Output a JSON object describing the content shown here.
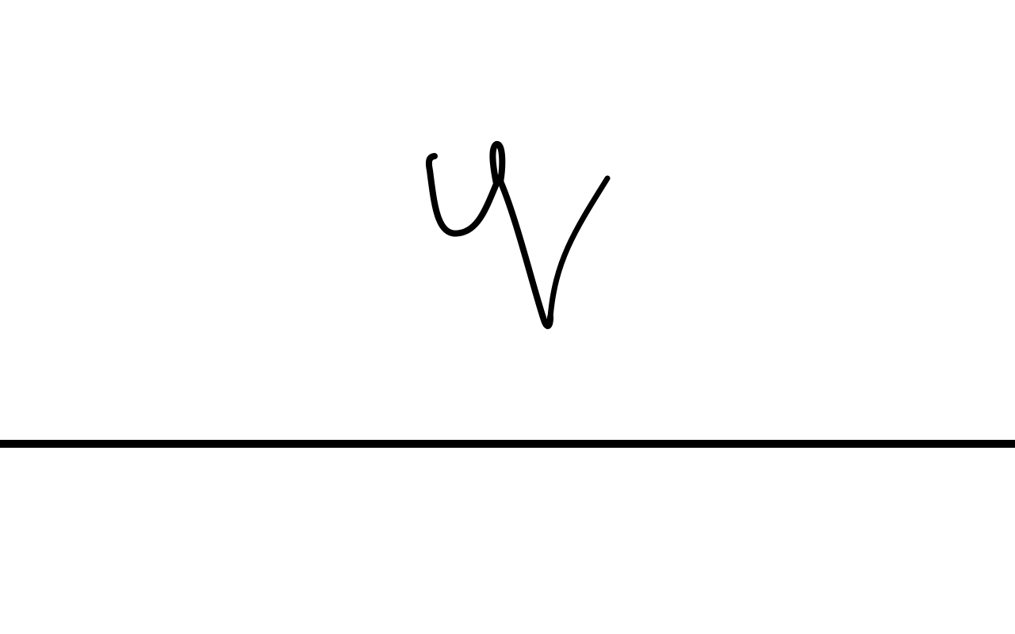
{
  "canvas": {
    "background_color": "#ffffff",
    "ink_color": "#000000"
  },
  "signature": {
    "icon": "handwritten-signature-icon",
    "strokes": 1
  },
  "baseline": {
    "color": "#000000"
  }
}
